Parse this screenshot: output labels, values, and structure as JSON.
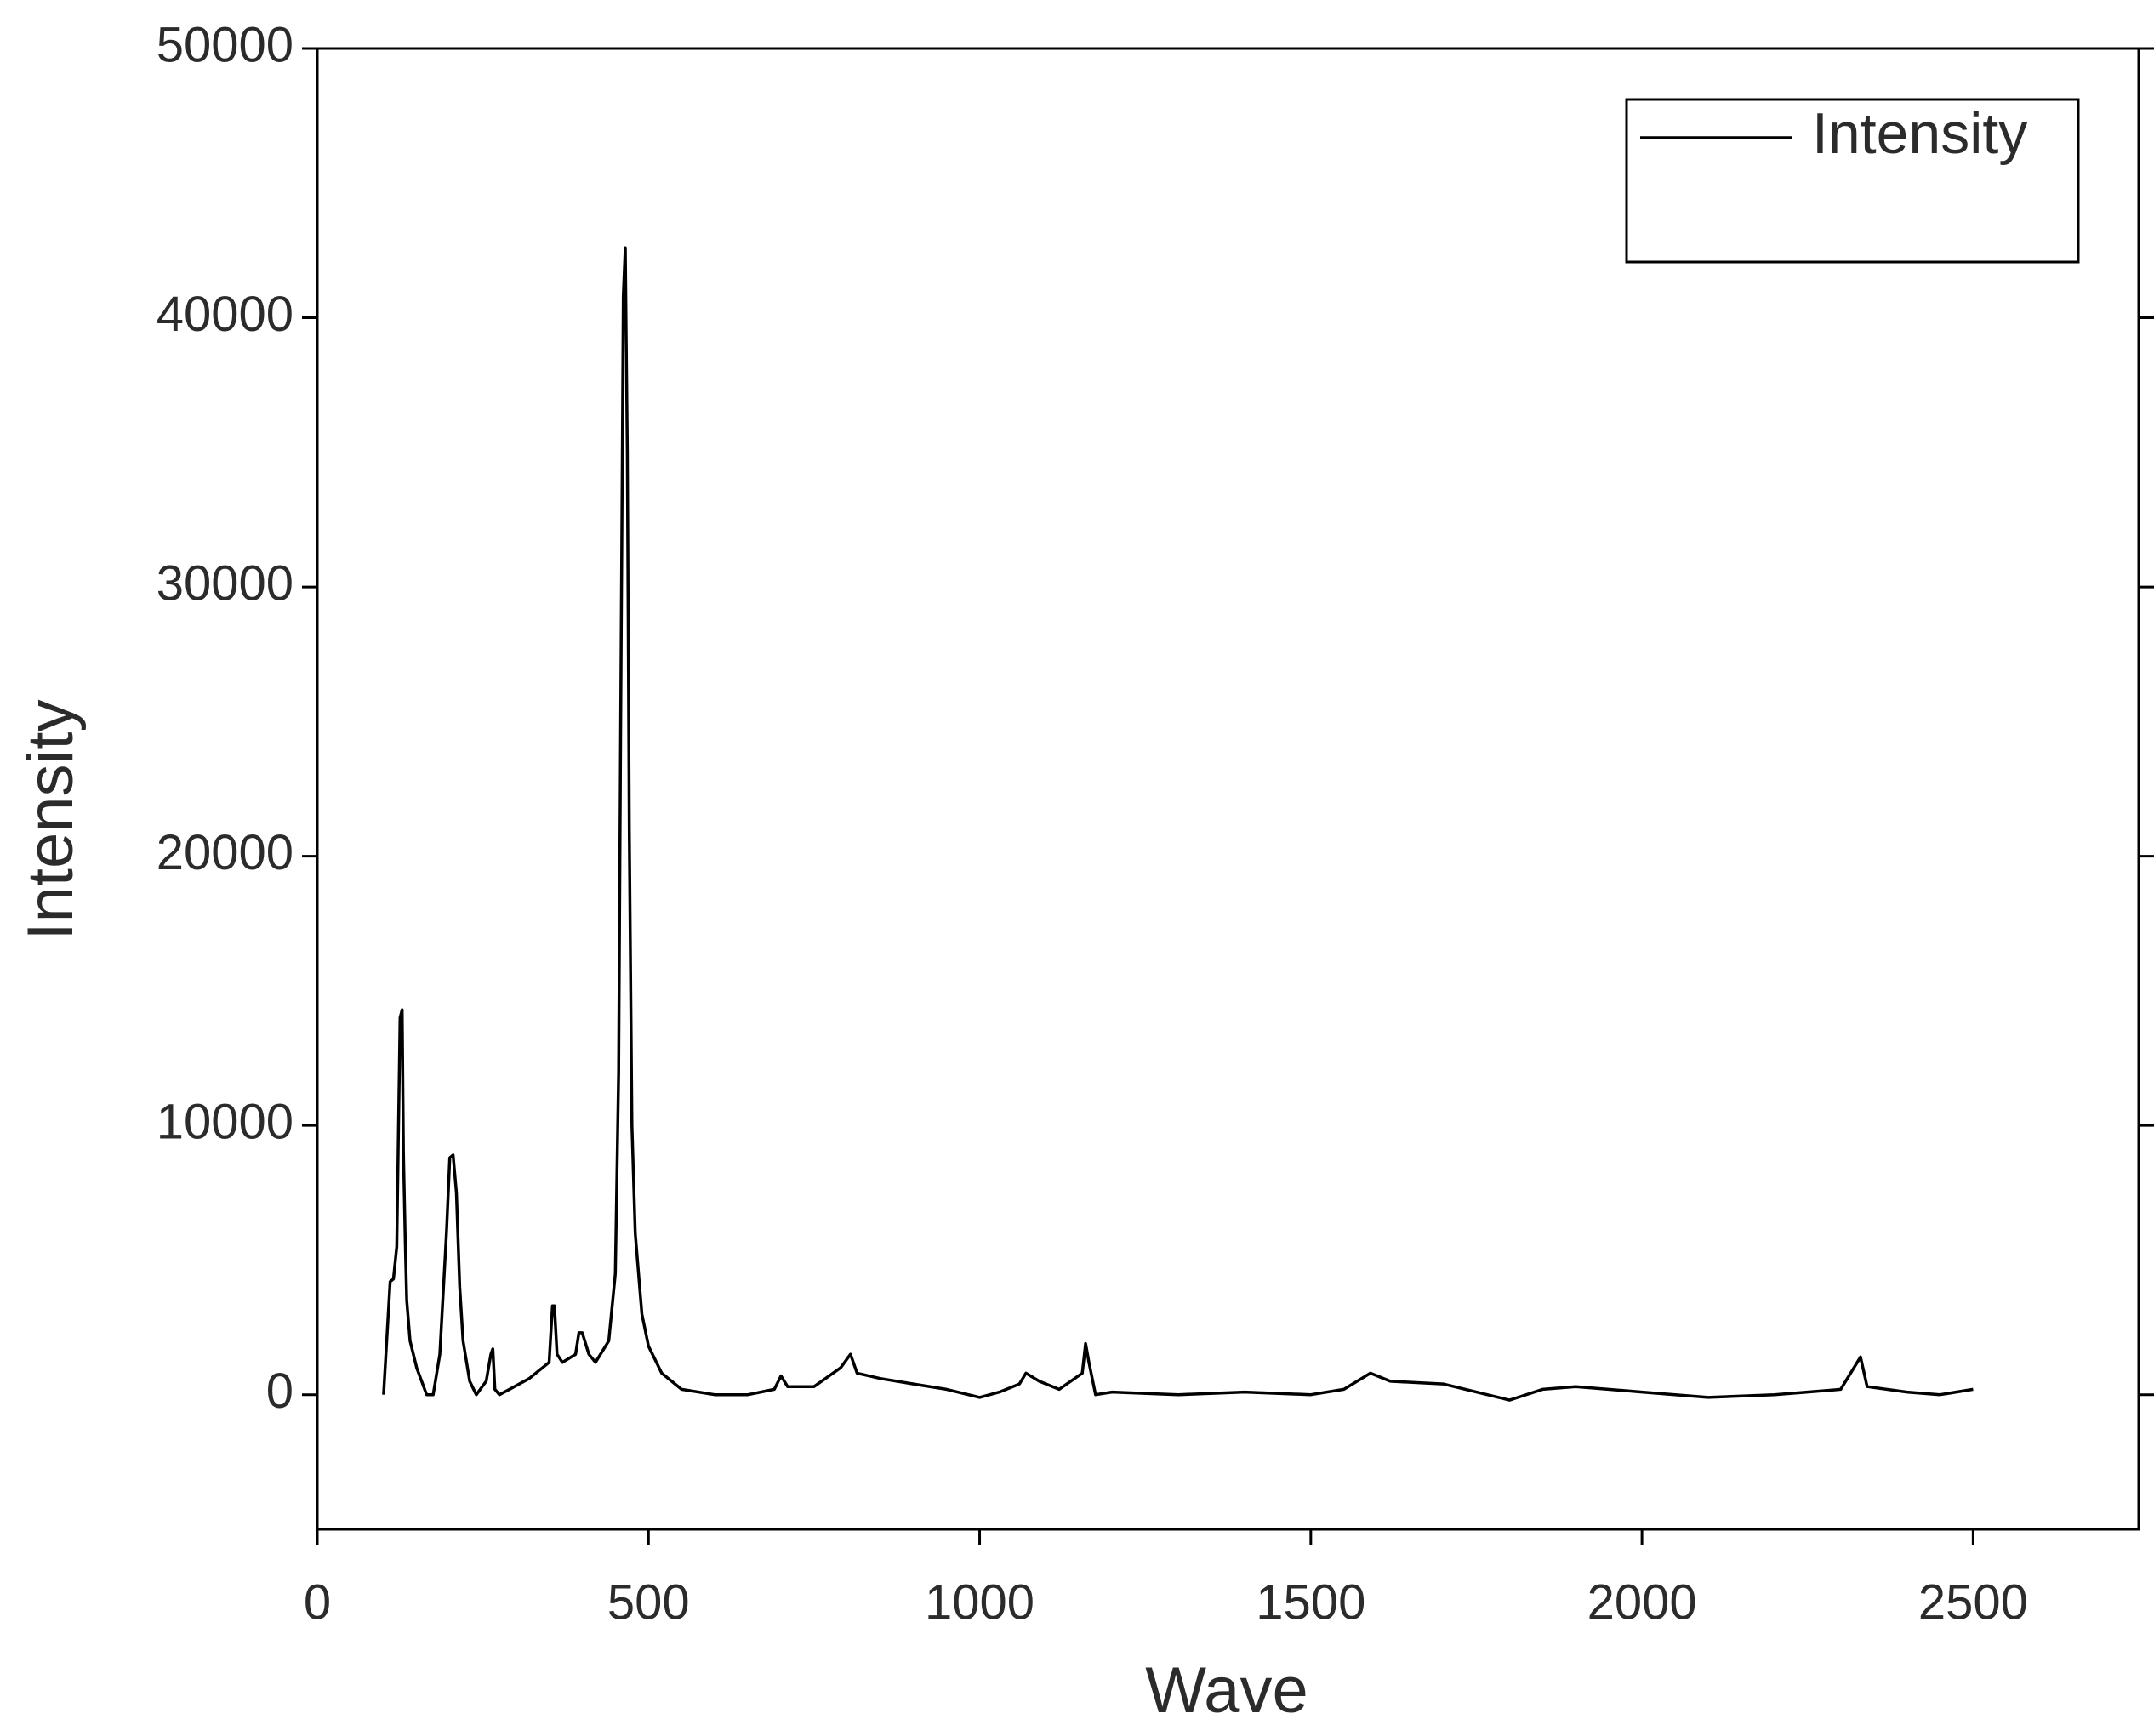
{
  "chart_data": {
    "type": "line",
    "x_label": "Wave",
    "y_label": "Intensity",
    "x": [
      100,
      110,
      115,
      120,
      125,
      128,
      130,
      133,
      135,
      140,
      150,
      165,
      175,
      185,
      195,
      200,
      205,
      210,
      215,
      220,
      230,
      240,
      255,
      262,
      265,
      268,
      275,
      290,
      320,
      350,
      355,
      358,
      362,
      370,
      390,
      395,
      400,
      410,
      420,
      440,
      450,
      455,
      458,
      462,
      465,
      468,
      471,
      475,
      480,
      490,
      500,
      520,
      550,
      600,
      650,
      690,
      700,
      710,
      750,
      790,
      805,
      815,
      850,
      900,
      950,
      1000,
      1030,
      1060,
      1070,
      1090,
      1120,
      1155,
      1160,
      1165,
      1175,
      1200,
      1300,
      1400,
      1500,
      1550,
      1590,
      1620,
      1700,
      1750,
      1800,
      1850,
      1900,
      2000,
      2100,
      2200,
      2300,
      2330,
      2340,
      2400,
      2450,
      2500
    ],
    "series": [
      {
        "name": "Intensity",
        "color": "#000000",
        "values": [
          0,
          4200,
          4300,
          5500,
          14000,
          14300,
          9000,
          5500,
          3500,
          2000,
          1000,
          0,
          0,
          1500,
          6000,
          8800,
          8900,
          7500,
          4000,
          2000,
          500,
          0,
          500,
          1500,
          1700,
          200,
          0,
          200,
          600,
          1200,
          3300,
          3300,
          1500,
          1200,
          1500,
          2300,
          2300,
          1500,
          1200,
          2000,
          4500,
          12000,
          25000,
          40800,
          42600,
          35000,
          21000,
          10000,
          6000,
          3000,
          1800,
          800,
          200,
          0,
          0,
          200,
          700,
          300,
          300,
          1000,
          1500,
          800,
          600,
          400,
          200,
          -100,
          100,
          400,
          800,
          500,
          200,
          800,
          1900,
          1200,
          0,
          100,
          0,
          100,
          0,
          200,
          800,
          500,
          400,
          100,
          -200,
          200,
          300,
          100,
          -100,
          0,
          200,
          1400,
          300,
          100,
          0,
          200
        ]
      }
    ],
    "xlim": [
      0,
      2750
    ],
    "xticks": [
      0,
      500,
      1000,
      1500,
      2000,
      2500
    ],
    "ylim": [
      -5000,
      50000
    ],
    "yticks": [
      0,
      10000,
      20000,
      30000,
      40000,
      50000
    ],
    "legend": "upper right"
  }
}
